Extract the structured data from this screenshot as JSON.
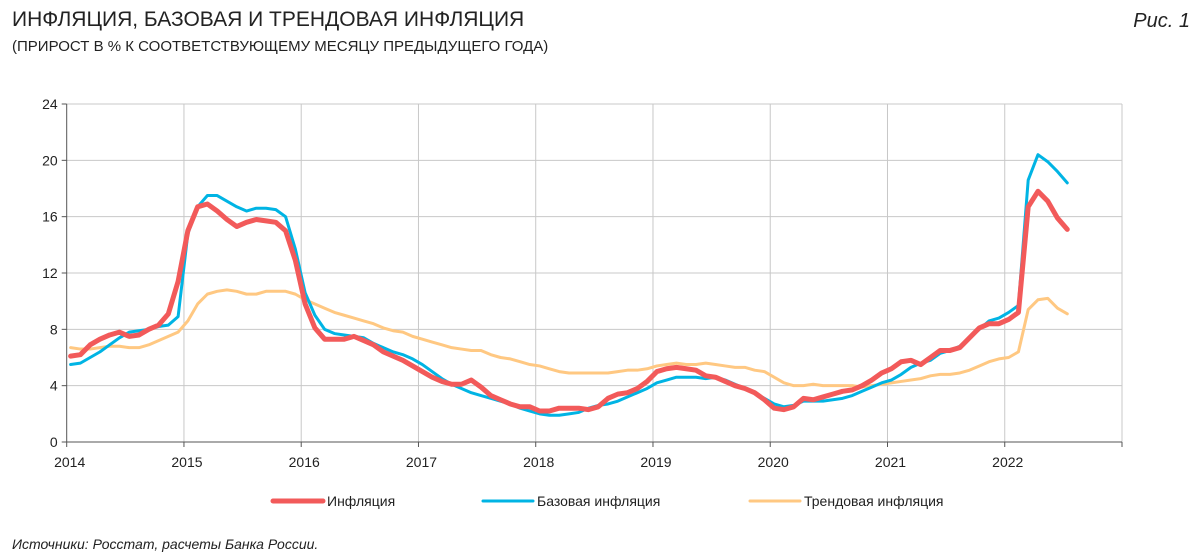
{
  "header": {
    "title": "ИНФЛЯЦИЯ, БАЗОВАЯ И ТРЕНДОВАЯ ИНФЛЯЦИЯ",
    "subtitle": "(ПРИРОСТ В % К СООТВЕТСТВУЮЩЕМУ МЕСЯЦУ ПРЕДЫДУЩЕГО ГОДА)",
    "figure_label": "Рис. 1"
  },
  "footer": {
    "source": "Источники: Росстат, расчеты Банка России."
  },
  "chart_data": {
    "type": "line",
    "x_start": "2014-01",
    "frequency": "monthly",
    "xlim": [
      2014,
      2023
    ],
    "ylim": [
      0,
      24
    ],
    "x_ticks": [
      "2014",
      "2015",
      "2016",
      "2017",
      "2018",
      "2019",
      "2020",
      "2021",
      "2022"
    ],
    "y_ticks": [
      "0",
      "4",
      "8",
      "12",
      "16",
      "20",
      "24"
    ],
    "grid": true,
    "legend": "bottom",
    "series": [
      {
        "name": "Инфляция",
        "color": "#f25a5a",
        "values": [
          6.1,
          6.2,
          6.9,
          7.3,
          7.6,
          7.8,
          7.5,
          7.6,
          8.0,
          8.3,
          9.1,
          11.4,
          15.0,
          16.7,
          16.9,
          16.4,
          15.8,
          15.3,
          15.6,
          15.8,
          15.7,
          15.6,
          15.0,
          12.9,
          9.8,
          8.1,
          7.3,
          7.3,
          7.3,
          7.5,
          7.2,
          6.9,
          6.4,
          6.1,
          5.8,
          5.4,
          5.0,
          4.6,
          4.3,
          4.1,
          4.1,
          4.4,
          3.9,
          3.3,
          3.0,
          2.7,
          2.5,
          2.5,
          2.2,
          2.2,
          2.4,
          2.4,
          2.4,
          2.3,
          2.5,
          3.1,
          3.4,
          3.5,
          3.8,
          4.3,
          5.0,
          5.2,
          5.3,
          5.2,
          5.1,
          4.7,
          4.6,
          4.3,
          4.0,
          3.8,
          3.5,
          3.0,
          2.4,
          2.3,
          2.5,
          3.1,
          3.0,
          3.2,
          3.4,
          3.6,
          3.7,
          4.0,
          4.4,
          4.9,
          5.2,
          5.7,
          5.8,
          5.5,
          6.0,
          6.5,
          6.5,
          6.7,
          7.4,
          8.1,
          8.4,
          8.4,
          8.7,
          9.2,
          16.7,
          17.8,
          17.1,
          15.9,
          15.1
        ]
      },
      {
        "name": "Базовая инфляция",
        "color": "#00b4e4",
        "values": [
          5.5,
          5.6,
          6.0,
          6.4,
          6.9,
          7.4,
          7.8,
          7.9,
          8.0,
          8.2,
          8.3,
          8.9,
          14.8,
          16.7,
          17.5,
          17.5,
          17.1,
          16.7,
          16.4,
          16.6,
          16.6,
          16.5,
          16.0,
          13.7,
          10.6,
          9.0,
          8.0,
          7.7,
          7.6,
          7.5,
          7.4,
          7.0,
          6.7,
          6.4,
          6.2,
          5.9,
          5.5,
          5.0,
          4.5,
          4.1,
          3.8,
          3.5,
          3.3,
          3.1,
          2.9,
          2.7,
          2.4,
          2.2,
          2.0,
          1.9,
          1.9,
          2.0,
          2.1,
          2.4,
          2.6,
          2.7,
          2.9,
          3.2,
          3.5,
          3.8,
          4.2,
          4.4,
          4.6,
          4.6,
          4.6,
          4.5,
          4.6,
          4.4,
          4.1,
          3.8,
          3.5,
          3.1,
          2.7,
          2.5,
          2.6,
          2.9,
          2.9,
          2.9,
          3.0,
          3.1,
          3.3,
          3.6,
          3.9,
          4.2,
          4.4,
          4.8,
          5.3,
          5.6,
          5.8,
          6.3,
          6.5,
          6.8,
          7.4,
          8.0,
          8.6,
          8.8,
          9.2,
          9.7,
          18.6,
          20.4,
          19.9,
          19.2,
          18.4
        ]
      },
      {
        "name": "Трендовая инфляция",
        "color": "#ffc882",
        "values": [
          6.7,
          6.6,
          6.6,
          6.7,
          6.8,
          6.8,
          6.7,
          6.7,
          6.9,
          7.2,
          7.5,
          7.8,
          8.6,
          9.8,
          10.5,
          10.7,
          10.8,
          10.7,
          10.5,
          10.5,
          10.7,
          10.7,
          10.7,
          10.5,
          10.1,
          9.8,
          9.5,
          9.2,
          9.0,
          8.8,
          8.6,
          8.4,
          8.1,
          7.9,
          7.8,
          7.5,
          7.3,
          7.1,
          6.9,
          6.7,
          6.6,
          6.5,
          6.5,
          6.2,
          6.0,
          5.9,
          5.7,
          5.5,
          5.4,
          5.2,
          5.0,
          4.9,
          4.9,
          4.9,
          4.9,
          4.9,
          5.0,
          5.1,
          5.1,
          5.2,
          5.4,
          5.5,
          5.6,
          5.5,
          5.5,
          5.6,
          5.5,
          5.4,
          5.3,
          5.3,
          5.1,
          5.0,
          4.6,
          4.2,
          4.0,
          4.0,
          4.1,
          4.0,
          4.0,
          4.0,
          4.0,
          3.9,
          4.0,
          4.1,
          4.2,
          4.3,
          4.4,
          4.5,
          4.7,
          4.8,
          4.8,
          4.9,
          5.1,
          5.4,
          5.7,
          5.9,
          6.0,
          6.4,
          9.4,
          10.1,
          10.2,
          9.5,
          9.1
        ]
      }
    ]
  }
}
